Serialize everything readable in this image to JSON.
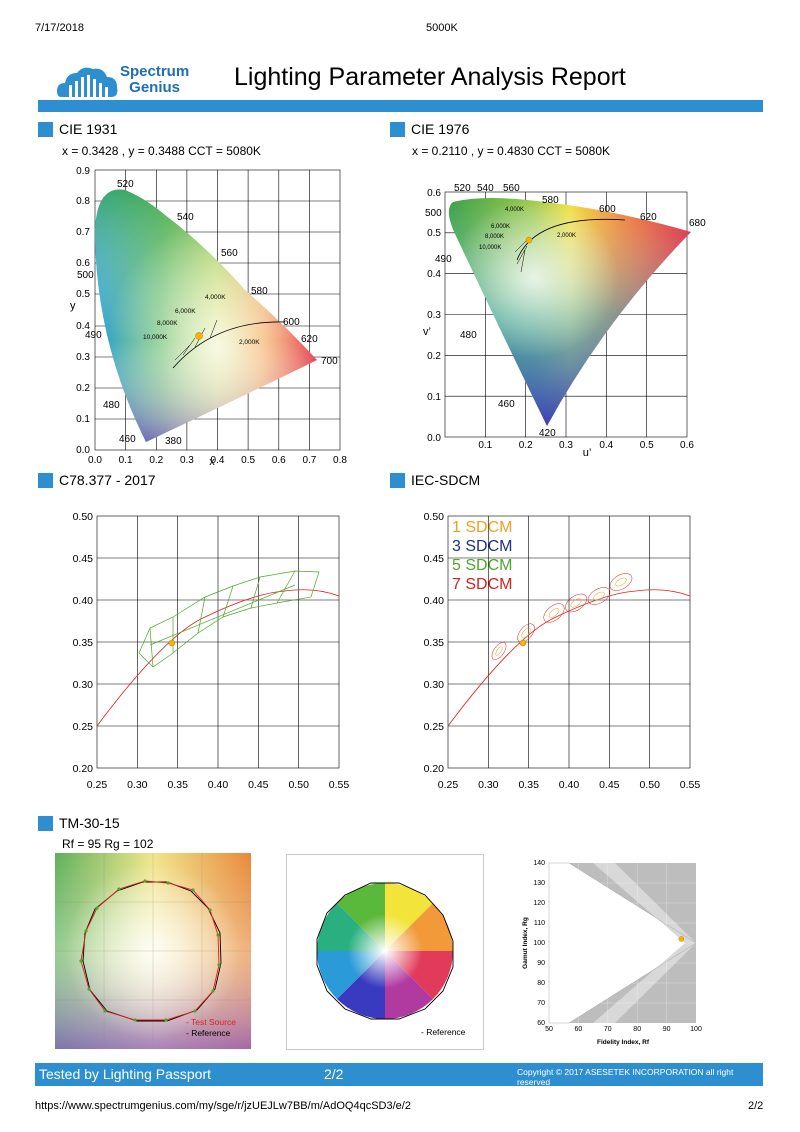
{
  "print_header": {
    "date": "7/17/2018",
    "title": "5000K"
  },
  "logo": {
    "line1": "Spectrum",
    "line2": "Genius"
  },
  "report_title": "Lighting Parameter Analysis Report",
  "colors": {
    "accent": "#2e8fd0",
    "curve": "#e0201b",
    "point": "#f5b400",
    "grid": "#000000"
  },
  "sections": {
    "cie1931": {
      "title": "CIE 1931",
      "values": "x = 0.3428 , y = 0.3488 CCT = 5080K",
      "xlabel": "x",
      "ylabel": "y",
      "x_ticks": [
        "0.0",
        "0.1",
        "0.2",
        "0.3",
        "0.4",
        "0.5",
        "0.6",
        "0.7",
        "0.8"
      ],
      "y_ticks": [
        "0.9",
        "0.8",
        "0.7",
        "0.6",
        "0.5",
        "0.4",
        "0.3",
        "0.2",
        "0.1",
        "0.0"
      ],
      "wavelengths": [
        "520",
        "540",
        "560",
        "580",
        "600",
        "620",
        "700",
        "500",
        "490",
        "480",
        "460",
        "380"
      ],
      "cct_labels": [
        "4,000K",
        "6,000K",
        "8,000K",
        "10,000K",
        "2,000K"
      ]
    },
    "cie1976": {
      "title": "CIE 1976",
      "values": "x = 0.2110 , y = 0.4830 CCT = 5080K",
      "xlabel": "u’",
      "ylabel": "v’",
      "x_ticks": [
        "0.0",
        "0.1",
        "0.2",
        "0.3",
        "0.4",
        "0.5",
        "0.6"
      ],
      "y_ticks": [
        "0.6",
        "0.5",
        "0.4",
        "0.3",
        "0.2",
        "0.1"
      ],
      "wavelengths": [
        "520",
        "540",
        "560",
        "580",
        "600",
        "620",
        "680",
        "500",
        "490",
        "480",
        "460",
        "420"
      ],
      "cct_labels": [
        "4,000K",
        "6,000K",
        "8,000K",
        "10,000K",
        "2,000K"
      ]
    },
    "c78": {
      "title": "C78.377 - 2017",
      "x_ticks": [
        "0.25",
        "0.30",
        "0.35",
        "0.40",
        "0.45",
        "0.50",
        "0.55"
      ],
      "y_ticks": [
        "0.50",
        "0.45",
        "0.40",
        "0.35",
        "0.30",
        "0.25",
        "0.20"
      ]
    },
    "iec": {
      "title": "IEC-SDCM",
      "x_ticks": [
        "0.25",
        "0.30",
        "0.35",
        "0.40",
        "0.45",
        "0.50",
        "0.55"
      ],
      "y_ticks": [
        "0.50",
        "0.45",
        "0.40",
        "0.35",
        "0.30",
        "0.25",
        "0.20"
      ],
      "legend": [
        {
          "label": "1 SDCM",
          "color": "#f0a020"
        },
        {
          "label": "3 SDCM",
          "color": "#1e2f8a"
        },
        {
          "label": "5 SDCM",
          "color": "#4aa82a"
        },
        {
          "label": "7 SDCM",
          "color": "#d52020"
        }
      ]
    },
    "tm30": {
      "title": "TM-30-15",
      "values": "Rf = 95 Rg = 102",
      "legend_test": "- Test Source",
      "legend_ref": "- Reference",
      "legend_ref2": "- Reference",
      "gamut_ylabel": "Gamut Index, Rg",
      "gamut_xlabel": "Fidelity Index, Rf",
      "gamut_x_ticks": [
        "50",
        "60",
        "70",
        "80",
        "90",
        "100"
      ],
      "gamut_y_ticks": [
        "140",
        "130",
        "120",
        "110",
        "100",
        "90",
        "80",
        "70",
        "60"
      ]
    }
  },
  "chart_data": [
    {
      "type": "scatter",
      "title": "C78.377 - 2017",
      "xlabel": "",
      "ylabel": "",
      "xlim": [
        0.25,
        0.55
      ],
      "ylim": [
        0.2,
        0.5
      ],
      "series": [
        {
          "x": [
            0.3428
          ],
          "y": [
            0.3488
          ]
        }
      ]
    },
    {
      "type": "scatter",
      "title": "IEC-SDCM",
      "xlabel": "",
      "ylabel": "",
      "xlim": [
        0.25,
        0.55
      ],
      "ylim": [
        0.2,
        0.5
      ],
      "series": [
        {
          "x": [
            0.3428
          ],
          "y": [
            0.3488
          ]
        }
      ]
    },
    {
      "type": "scatter",
      "title": "",
      "xlabel": "Fidelity Index, Rf",
      "ylabel": "Gamut Index, Rg",
      "xlim": [
        50,
        100
      ],
      "ylim": [
        60,
        140
      ],
      "series": [
        {
          "x": [
            95
          ],
          "y": [
            102
          ]
        }
      ]
    }
  ],
  "footer": {
    "tested_by": "Tested by Lighting Passport",
    "page": "2/2",
    "copyright": "Copyright © 2017 ASESETEK INCORPORATION all right reserved",
    "url": "https://www.spectrumgenius.com/my/sge/r/jzUEJLw7BB/m/AdOQ4qcSD3/e/2",
    "page_num": "2/2"
  }
}
